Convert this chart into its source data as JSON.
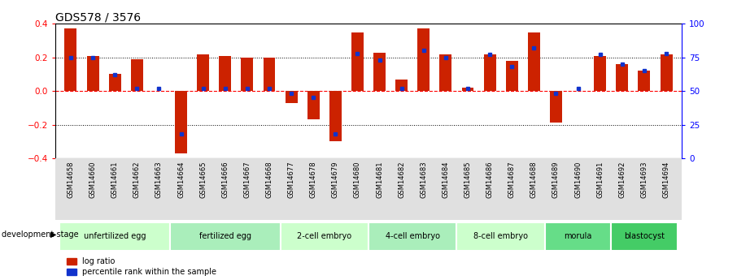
{
  "title": "GDS578 / 3576",
  "samples": [
    "GSM14658",
    "GSM14660",
    "GSM14661",
    "GSM14662",
    "GSM14663",
    "GSM14664",
    "GSM14665",
    "GSM14666",
    "GSM14667",
    "GSM14668",
    "GSM14677",
    "GSM14678",
    "GSM14679",
    "GSM14680",
    "GSM14681",
    "GSM14682",
    "GSM14683",
    "GSM14684",
    "GSM14685",
    "GSM14686",
    "GSM14687",
    "GSM14688",
    "GSM14689",
    "GSM14690",
    "GSM14691",
    "GSM14692",
    "GSM14693",
    "GSM14694"
  ],
  "log_ratio": [
    0.375,
    0.21,
    0.1,
    0.19,
    0.0,
    -0.37,
    0.22,
    0.21,
    0.2,
    0.2,
    -0.07,
    -0.17,
    -0.3,
    0.35,
    0.23,
    0.07,
    0.375,
    0.22,
    0.02,
    0.22,
    0.18,
    0.35,
    -0.19,
    0.0,
    0.21,
    0.16,
    0.12,
    0.22
  ],
  "percentile_rank": [
    75,
    75,
    62,
    52,
    52,
    18,
    52,
    52,
    52,
    52,
    48,
    45,
    18,
    78,
    73,
    52,
    80,
    75,
    52,
    77,
    68,
    82,
    48,
    52,
    77,
    70,
    65,
    78
  ],
  "stages": [
    {
      "label": "unfertilized egg",
      "start": 0,
      "end": 5,
      "color": "#ccffcc"
    },
    {
      "label": "fertilized egg",
      "start": 5,
      "end": 10,
      "color": "#aaeebb"
    },
    {
      "label": "2-cell embryo",
      "start": 10,
      "end": 14,
      "color": "#ccffcc"
    },
    {
      "label": "4-cell embryo",
      "start": 14,
      "end": 18,
      "color": "#aaeebb"
    },
    {
      "label": "8-cell embryo",
      "start": 18,
      "end": 22,
      "color": "#ccffcc"
    },
    {
      "label": "morula",
      "start": 22,
      "end": 25,
      "color": "#66dd88"
    },
    {
      "label": "blastocyst",
      "start": 25,
      "end": 28,
      "color": "#44cc66"
    }
  ],
  "bar_color": "#cc2200",
  "dot_color": "#1133cc",
  "ylim_left": [
    -0.4,
    0.4
  ],
  "ylim_right": [
    0,
    100
  ],
  "yticks_left": [
    -0.4,
    -0.2,
    0.0,
    0.2,
    0.4
  ],
  "yticks_right": [
    0,
    25,
    50,
    75,
    100
  ],
  "hlines_dotted": [
    -0.2,
    0.2
  ],
  "hline_dashed": 0.0,
  "legend_log_ratio": "log ratio",
  "legend_percentile": "percentile rank within the sample",
  "stage_label": "development stage"
}
